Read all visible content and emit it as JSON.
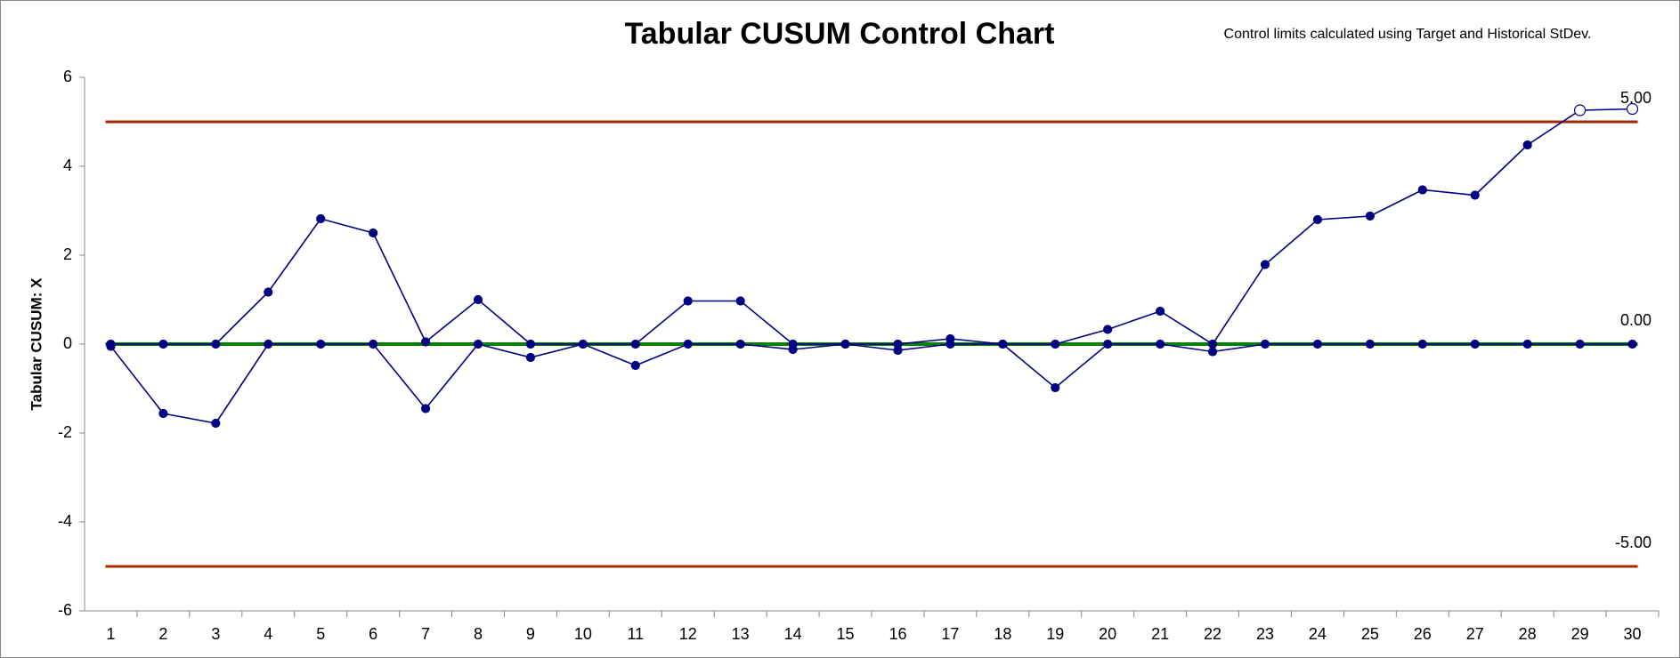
{
  "chart_data": {
    "type": "line",
    "title": "Tabular CUSUM Control Chart",
    "note": "Control limits calculated using Target and Historical StDev.",
    "y_label": "Tabular CUSUM: X",
    "categories": [
      "1",
      "2",
      "3",
      "4",
      "5",
      "6",
      "7",
      "8",
      "9",
      "10",
      "11",
      "12",
      "13",
      "14",
      "15",
      "16",
      "17",
      "18",
      "19",
      "20",
      "21",
      "22",
      "23",
      "24",
      "25",
      "26",
      "27",
      "28",
      "29",
      "30"
    ],
    "series": [
      {
        "color": "#000080",
        "values": [
          0,
          0,
          0,
          1.17,
          2.82,
          2.5,
          0.05,
          1.0,
          0,
          0,
          0,
          0.97,
          0.97,
          0,
          0,
          0,
          0.12,
          0,
          0,
          0.33,
          0.74,
          0,
          1.79,
          2.8,
          2.88,
          3.47,
          3.35,
          4.48,
          5.26,
          5.29
        ]
      },
      {
        "color": "#000080",
        "values": [
          -0.05,
          -1.56,
          -1.78,
          0,
          0,
          0,
          -1.45,
          0,
          -0.3,
          0,
          -0.48,
          0,
          0,
          -0.12,
          0,
          -0.14,
          0,
          0,
          -0.98,
          0,
          0,
          -0.17,
          0,
          0,
          0,
          0,
          0,
          0,
          0,
          0
        ]
      }
    ],
    "control_lines": [
      {
        "value": 5,
        "label": "5.00",
        "color": "#a52a00"
      },
      {
        "value": 0,
        "label": "0.00",
        "color": "#008000"
      },
      {
        "value": -5,
        "label": "-5.00",
        "color": "#a52a00"
      }
    ],
    "ylim": [
      -6,
      6
    ],
    "yticks": [
      -6,
      -4,
      -2,
      0,
      2,
      4,
      6
    ],
    "grid": false
  }
}
